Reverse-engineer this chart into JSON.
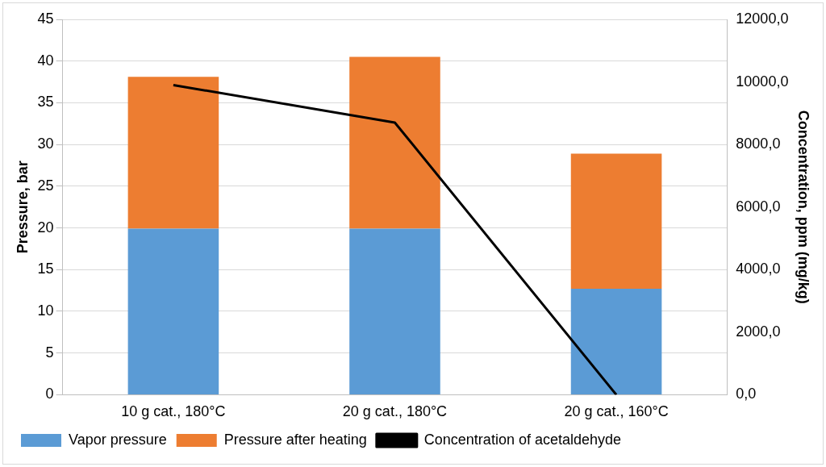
{
  "chart_data": {
    "type": "bar",
    "stacked": true,
    "categories": [
      "10 g cat., 180°C",
      "20 g cat., 180°C",
      "20 g cat., 160°C"
    ],
    "series": [
      {
        "name": "Vapor pressure",
        "color": "#5b9bd5",
        "values": [
          19.9,
          19.9,
          12.7
        ]
      },
      {
        "name": "Pressure after heating",
        "color": "#ed7d31",
        "values": [
          18.2,
          20.6,
          16.2
        ]
      },
      {
        "name": "Concentration of acetaldehyde",
        "type": "line",
        "axis": "y2",
        "color": "#000000",
        "values": [
          9900,
          8700,
          0
        ]
      }
    ],
    "ylabel": "Pressure, bar",
    "y2label": "Concentration, ppm (mg/kg)",
    "ylim": [
      0,
      45
    ],
    "yticks": [
      0,
      5,
      10,
      15,
      20,
      25,
      30,
      35,
      40,
      45
    ],
    "y2lim": [
      0,
      12000
    ],
    "y2ticks": [
      {
        "value": 0,
        "label": "0,0"
      },
      {
        "value": 2000,
        "label": "2000,0"
      },
      {
        "value": 4000,
        "label": "4000,0"
      },
      {
        "value": 6000,
        "label": "6000,0"
      },
      {
        "value": 8000,
        "label": "8000,0"
      },
      {
        "value": 10000,
        "label": "10000,0"
      },
      {
        "value": 12000,
        "label": "12000,0"
      }
    ],
    "grid": "y",
    "legend": "bottom",
    "marker": "none",
    "line_style": "solid"
  }
}
